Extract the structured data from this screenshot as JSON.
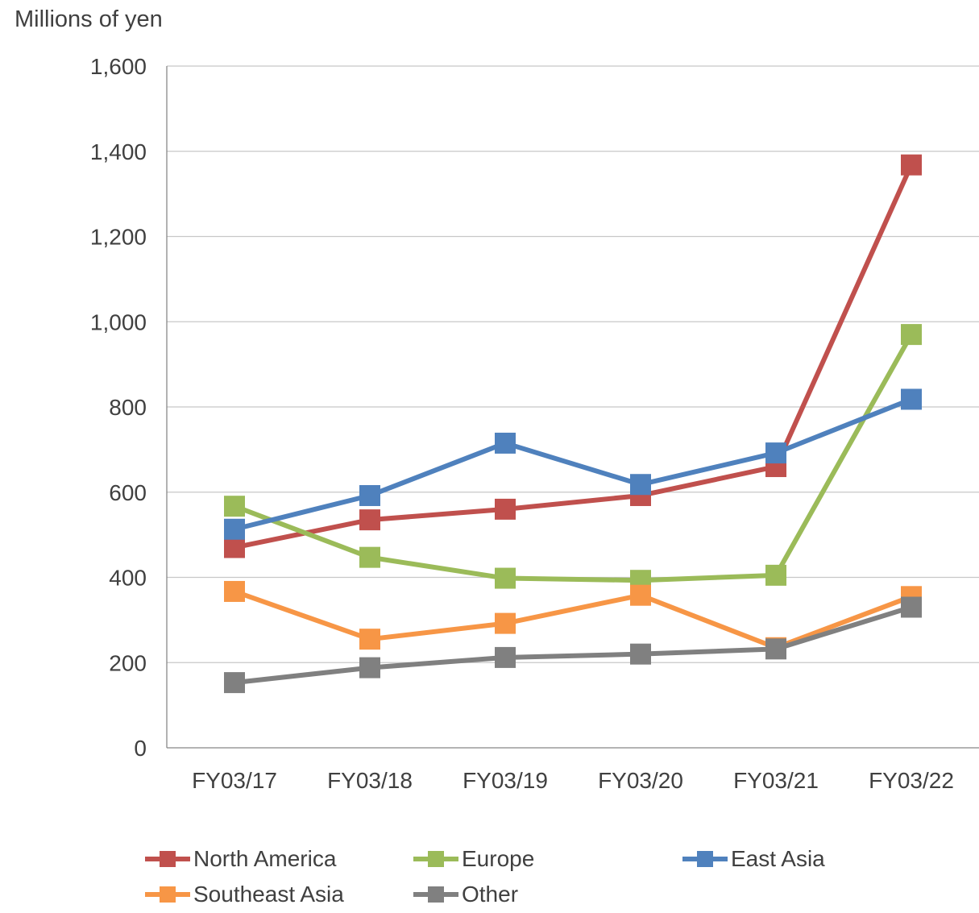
{
  "chart_data": {
    "type": "line",
    "ylabel": "Millions of yen",
    "categories": [
      "FY03/17",
      "FY03/18",
      "FY03/19",
      "FY03/20",
      "FY03/21",
      "FY03/22"
    ],
    "ylim": [
      0,
      1600
    ],
    "yticks": [
      0,
      200,
      400,
      600,
      800,
      1000,
      1200,
      1400,
      1600
    ],
    "ytick_labels": [
      "0",
      "200",
      "400",
      "600",
      "800",
      "1,000",
      "1,200",
      "1,400",
      "1,600"
    ],
    "grid": true,
    "legend_position": "bottom",
    "series": [
      {
        "name": "North America",
        "color": "#C0504D",
        "values": [
          470,
          535,
          560,
          592,
          660,
          1368
        ]
      },
      {
        "name": "Europe",
        "color": "#9BBB59",
        "values": [
          567,
          447,
          398,
          393,
          405,
          970
        ]
      },
      {
        "name": "East Asia",
        "color": "#4F81BD",
        "values": [
          513,
          592,
          715,
          618,
          692,
          818
        ]
      },
      {
        "name": "Southeast Asia",
        "color": "#F79646",
        "values": [
          367,
          255,
          292,
          358,
          235,
          355
        ]
      },
      {
        "name": "Other",
        "color": "#808080",
        "values": [
          153,
          188,
          212,
          220,
          232,
          330
        ]
      }
    ]
  }
}
